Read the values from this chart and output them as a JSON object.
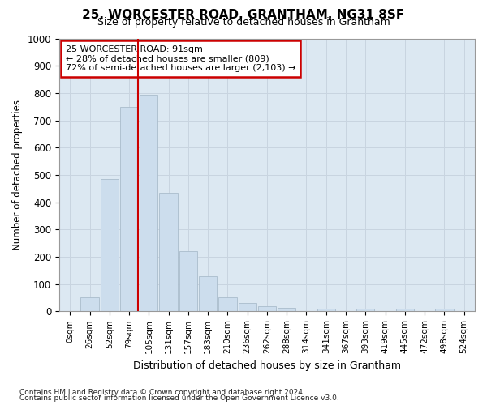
{
  "title": "25, WORCESTER ROAD, GRANTHAM, NG31 8SF",
  "subtitle": "Size of property relative to detached houses in Grantham",
  "xlabel": "Distribution of detached houses by size in Grantham",
  "ylabel": "Number of detached properties",
  "bar_labels": [
    "0sqm",
    "26sqm",
    "52sqm",
    "79sqm",
    "105sqm",
    "131sqm",
    "157sqm",
    "183sqm",
    "210sqm",
    "236sqm",
    "262sqm",
    "288sqm",
    "314sqm",
    "341sqm",
    "367sqm",
    "393sqm",
    "419sqm",
    "445sqm",
    "472sqm",
    "498sqm",
    "524sqm"
  ],
  "bar_heights": [
    0,
    50,
    485,
    750,
    795,
    435,
    222,
    128,
    52,
    30,
    18,
    12,
    0,
    10,
    0,
    10,
    0,
    10,
    0,
    10,
    0
  ],
  "bar_color": "#ccdded",
  "bar_edgecolor": "#aabccc",
  "grid_color": "#c8d4e0",
  "background_color": "#dce8f2",
  "vline_x": 3.46,
  "vline_color": "#cc0000",
  "annotation_text": "25 WORCESTER ROAD: 91sqm\n← 28% of detached houses are smaller (809)\n72% of semi-detached houses are larger (2,103) →",
  "annotation_box_color": "#cc0000",
  "ylim": [
    0,
    1000
  ],
  "yticks": [
    0,
    100,
    200,
    300,
    400,
    500,
    600,
    700,
    800,
    900,
    1000
  ],
  "footer_line1": "Contains HM Land Registry data © Crown copyright and database right 2024.",
  "footer_line2": "Contains public sector information licensed under the Open Government Licence v3.0."
}
